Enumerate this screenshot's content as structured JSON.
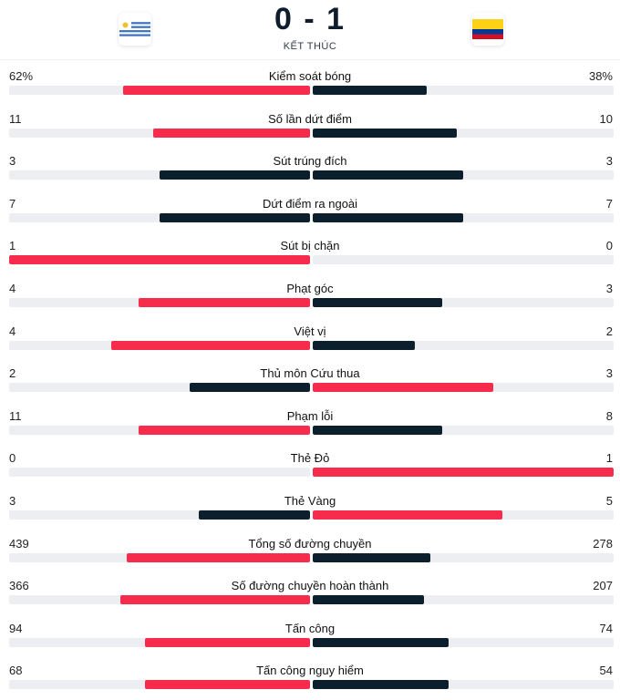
{
  "match": {
    "score": "0 - 1",
    "status": "KẾT THÚC",
    "home_flag": "uruguay-flag",
    "away_flag": "colombia-flag"
  },
  "colors": {
    "leader": "#f72c4d",
    "trailer": "#0c1f2c",
    "track": "#eceef1"
  },
  "stats": [
    {
      "label": "Kiểm soát bóng",
      "home": "62%",
      "away": "38%",
      "home_share": 0.62,
      "away_share": 0.38
    },
    {
      "label": "Số lần dứt điểm",
      "home": "11",
      "away": "10",
      "home_share": 0.52,
      "away_share": 0.48
    },
    {
      "label": "Sút trúng đích",
      "home": "3",
      "away": "3",
      "home_share": 0.5,
      "away_share": 0.5
    },
    {
      "label": "Dứt điểm ra ngoài",
      "home": "7",
      "away": "7",
      "home_share": 0.5,
      "away_share": 0.5
    },
    {
      "label": "Sút bị chặn",
      "home": "1",
      "away": "0",
      "home_share": 1,
      "away_share": 0
    },
    {
      "label": "Phạt góc",
      "home": "4",
      "away": "3",
      "home_share": 0.57,
      "away_share": 0.43
    },
    {
      "label": "Việt vị",
      "home": "4",
      "away": "2",
      "home_share": 0.66,
      "away_share": 0.34
    },
    {
      "label": "Thủ môn Cứu thua",
      "home": "2",
      "away": "3",
      "home_share": 0.4,
      "away_share": 0.6
    },
    {
      "label": "Phạm lỗi",
      "home": "11",
      "away": "8",
      "home_share": 0.57,
      "away_share": 0.43
    },
    {
      "label": "Thẻ Đỏ",
      "home": "0",
      "away": "1",
      "home_share": 0,
      "away_share": 1
    },
    {
      "label": "Thẻ Vàng",
      "home": "3",
      "away": "5",
      "home_share": 0.37,
      "away_share": 0.63
    },
    {
      "label": "Tổng số đường chuyền",
      "home": "439",
      "away": "278",
      "home_share": 0.61,
      "away_share": 0.39
    },
    {
      "label": "Số đường chuyền hoàn thành",
      "home": "366",
      "away": "207",
      "home_share": 0.63,
      "away_share": 0.37
    },
    {
      "label": "Tấn công",
      "home": "94",
      "away": "74",
      "home_share": 0.55,
      "away_share": 0.45
    },
    {
      "label": "Tấn công nguy hiểm",
      "home": "68",
      "away": "54",
      "home_share": 0.55,
      "away_share": 0.45
    }
  ]
}
